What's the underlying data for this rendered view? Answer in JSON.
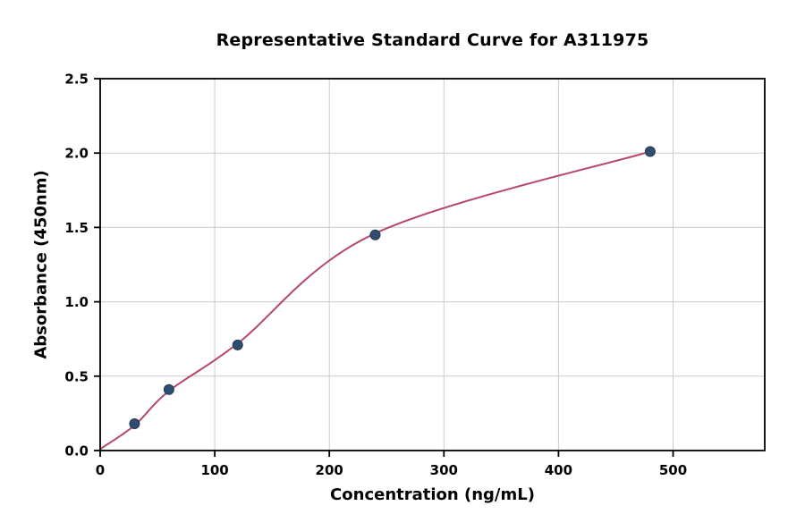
{
  "chart_data": {
    "type": "scatter",
    "title": "Representative Standard Curve for A311975",
    "xlabel": "Concentration (ng/mL)",
    "ylabel": "Absorbance (450nm)",
    "xlim": [
      0,
      580
    ],
    "ylim": [
      0,
      2.5
    ],
    "x_ticks": [
      0,
      100,
      200,
      300,
      400,
      500
    ],
    "x_tick_labels": [
      "0",
      "100",
      "200",
      "300",
      "400",
      "500"
    ],
    "y_ticks": [
      0,
      0.5,
      1.0,
      1.5,
      2.0,
      2.5
    ],
    "y_tick_labels": [
      "0.0",
      "0.5",
      "1.0",
      "1.5",
      "2.0",
      "2.5"
    ],
    "grid": true,
    "legend": "none",
    "points": [
      {
        "x": 30,
        "y": 0.18
      },
      {
        "x": 60,
        "y": 0.41
      },
      {
        "x": 120,
        "y": 0.71
      },
      {
        "x": 240,
        "y": 1.45
      },
      {
        "x": 480,
        "y": 2.01
      }
    ],
    "curve_control_points": [
      {
        "x": 0,
        "y": 0.01
      },
      {
        "x": 30,
        "y": 0.17
      },
      {
        "x": 60,
        "y": 0.4
      },
      {
        "x": 120,
        "y": 0.72
      },
      {
        "x": 240,
        "y": 1.46
      },
      {
        "x": 480,
        "y": 2.01
      }
    ],
    "colors": {
      "curve": "#b5476b",
      "point_fill": "#2e4d71",
      "point_edge": "#22394f",
      "grid": "#cccccc",
      "spine": "#000000",
      "background": "#ffffff"
    }
  }
}
